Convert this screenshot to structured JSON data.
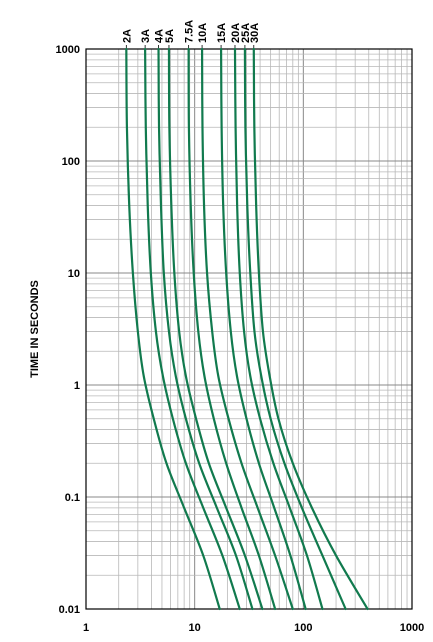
{
  "chart_data": {
    "type": "line",
    "title": "",
    "xlabel": "",
    "ylabel": "TIME IN SECONDS",
    "x_scale": "log",
    "y_scale": "log",
    "xlim": [
      1,
      1000
    ],
    "ylim": [
      0.01,
      1000
    ],
    "grid": true,
    "x_tick_labels": [
      "1",
      "10",
      "100",
      "1000"
    ],
    "y_tick_labels": [
      "1000",
      "100",
      "10",
      "1",
      "0.1",
      "0.01"
    ],
    "line_color": "#117a4e",
    "series": [
      {
        "name": "2A",
        "points": [
          [
            2.35,
            1000
          ],
          [
            2.38,
            200
          ],
          [
            2.5,
            40
          ],
          [
            2.7,
            10
          ],
          [
            3.0,
            3
          ],
          [
            3.4,
            1.2
          ],
          [
            4.2,
            0.5
          ],
          [
            5.5,
            0.2
          ],
          [
            8,
            0.08
          ],
          [
            12,
            0.03
          ],
          [
            17,
            0.01
          ]
        ]
      },
      {
        "name": "3A",
        "points": [
          [
            3.5,
            1000
          ],
          [
            3.55,
            200
          ],
          [
            3.7,
            40
          ],
          [
            3.95,
            10
          ],
          [
            4.4,
            3
          ],
          [
            5.1,
            1.2
          ],
          [
            6.3,
            0.5
          ],
          [
            8.3,
            0.2
          ],
          [
            12,
            0.08
          ],
          [
            18,
            0.03
          ],
          [
            26,
            0.01
          ]
        ]
      },
      {
        "name": "4A",
        "points": [
          [
            4.65,
            1000
          ],
          [
            4.7,
            200
          ],
          [
            4.9,
            40
          ],
          [
            5.2,
            10
          ],
          [
            5.8,
            3
          ],
          [
            6.7,
            1.2
          ],
          [
            8.3,
            0.5
          ],
          [
            11,
            0.2
          ],
          [
            16,
            0.08
          ],
          [
            24,
            0.03
          ],
          [
            34,
            0.01
          ]
        ]
      },
      {
        "name": "5A",
        "points": [
          [
            5.8,
            1000
          ],
          [
            5.85,
            200
          ],
          [
            6.1,
            40
          ],
          [
            6.5,
            10
          ],
          [
            7.2,
            3
          ],
          [
            8.3,
            1.2
          ],
          [
            10.3,
            0.5
          ],
          [
            13.5,
            0.2
          ],
          [
            19.5,
            0.08
          ],
          [
            29,
            0.03
          ],
          [
            42,
            0.01
          ]
        ]
      },
      {
        "name": "7.5A",
        "points": [
          [
            8.8,
            1000
          ],
          [
            8.85,
            200
          ],
          [
            9.2,
            40
          ],
          [
            9.8,
            10
          ],
          [
            10.8,
            3
          ],
          [
            12.3,
            1.2
          ],
          [
            15,
            0.5
          ],
          [
            19.5,
            0.2
          ],
          [
            27,
            0.08
          ],
          [
            39,
            0.03
          ],
          [
            55,
            0.01
          ]
        ]
      },
      {
        "name": "10A",
        "points": [
          [
            11.7,
            1000
          ],
          [
            11.8,
            200
          ],
          [
            12.2,
            40
          ],
          [
            13,
            10
          ],
          [
            14.5,
            3
          ],
          [
            16.5,
            1.2
          ],
          [
            20.5,
            0.5
          ],
          [
            27,
            0.2
          ],
          [
            38,
            0.08
          ],
          [
            55,
            0.03
          ],
          [
            80,
            0.01
          ]
        ]
      },
      {
        "name": "15A",
        "points": [
          [
            17.5,
            1000
          ],
          [
            17.7,
            200
          ],
          [
            18.3,
            40
          ],
          [
            19.5,
            10
          ],
          [
            21.5,
            3
          ],
          [
            24.5,
            1.2
          ],
          [
            30,
            0.5
          ],
          [
            39,
            0.2
          ],
          [
            54,
            0.08
          ],
          [
            76,
            0.03
          ],
          [
            105,
            0.01
          ]
        ]
      },
      {
        "name": "20A",
        "points": [
          [
            23.5,
            1000
          ],
          [
            23.8,
            200
          ],
          [
            24.6,
            40
          ],
          [
            26,
            10
          ],
          [
            28.5,
            3
          ],
          [
            32.5,
            1.2
          ],
          [
            40,
            0.5
          ],
          [
            53,
            0.2
          ],
          [
            75,
            0.08
          ],
          [
            108,
            0.03
          ],
          [
            150,
            0.01
          ]
        ]
      },
      {
        "name": "25A",
        "points": [
          [
            29,
            1000
          ],
          [
            29.3,
            200
          ],
          [
            30.5,
            40
          ],
          [
            32.5,
            10
          ],
          [
            35.5,
            3
          ],
          [
            41,
            1.2
          ],
          [
            50,
            0.5
          ],
          [
            67,
            0.2
          ],
          [
            97,
            0.08
          ],
          [
            150,
            0.03
          ],
          [
            245,
            0.01
          ]
        ]
      },
      {
        "name": "30A",
        "points": [
          [
            35,
            1000
          ],
          [
            35.4,
            200
          ],
          [
            36.8,
            40
          ],
          [
            39,
            10
          ],
          [
            42.5,
            3
          ],
          [
            49,
            1.2
          ],
          [
            59,
            0.5
          ],
          [
            80,
            0.2
          ],
          [
            120,
            0.08
          ],
          [
            200,
            0.03
          ],
          [
            390,
            0.01
          ]
        ]
      }
    ]
  }
}
